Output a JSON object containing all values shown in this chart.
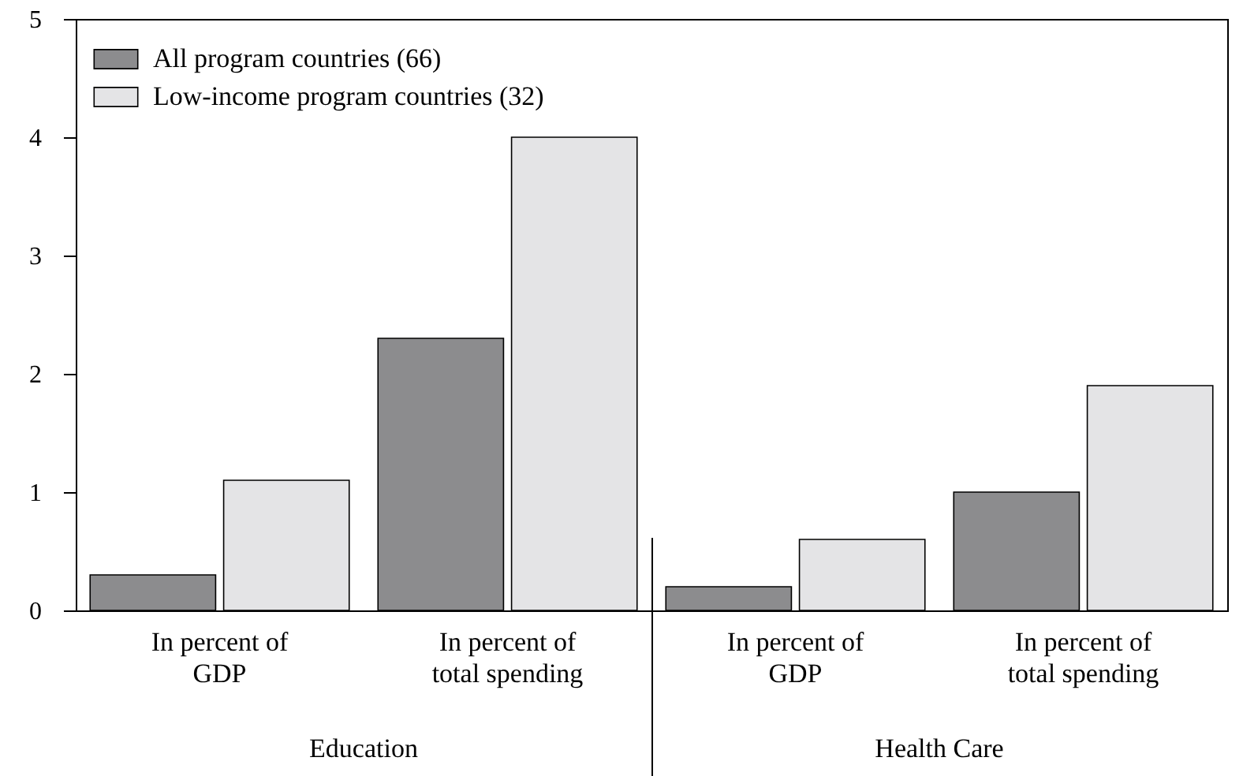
{
  "chart_data": {
    "type": "bar",
    "categories": [
      "In percent of GDP",
      "In percent of total spending",
      "In percent of GDP",
      "In percent of total spending"
    ],
    "series": [
      {
        "name": "All program countries (66)",
        "color": "#8c8c8e",
        "values": [
          0.3,
          2.3,
          0.2,
          1.0
        ]
      },
      {
        "name": "Low-income program countries (32)",
        "color": "#e4e4e6",
        "values": [
          1.1,
          4.0,
          0.6,
          1.9
        ]
      }
    ],
    "ylim": [
      0,
      5
    ],
    "yticks": [
      0,
      1,
      2,
      3,
      4,
      5
    ],
    "grid": false,
    "legend": "top left",
    "annotations": [
      "Education",
      "Health Care"
    ]
  }
}
